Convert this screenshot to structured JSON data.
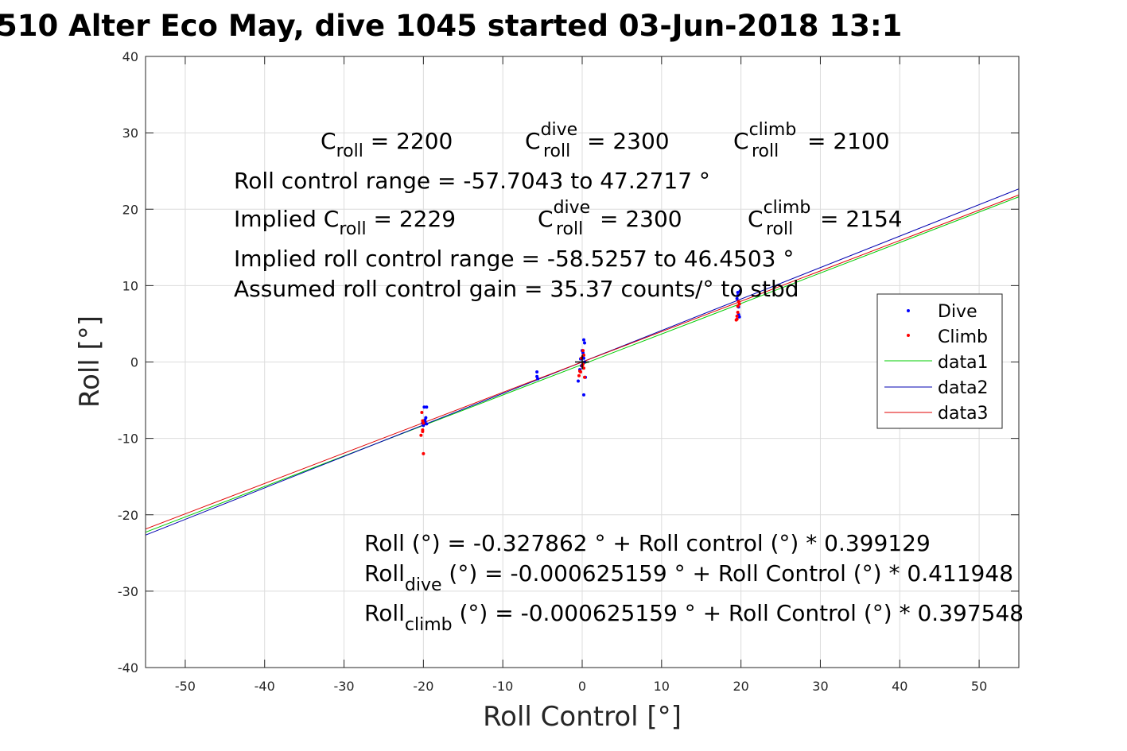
{
  "chart_data": {
    "type": "scatter",
    "title": "510 Alter Eco May, dive 1045 started 03-Jun-2018 13:1",
    "xlabel": "Roll Control [°]",
    "ylabel": "Roll [°]",
    "xlim": [
      -55,
      55
    ],
    "ylim": [
      -40,
      40
    ],
    "xticks": [
      -50,
      -40,
      -30,
      -20,
      -10,
      0,
      10,
      20,
      30,
      40,
      50
    ],
    "yticks": [
      -40,
      -30,
      -20,
      -10,
      0,
      10,
      20,
      30,
      40
    ],
    "xtick_labels": [
      "-50",
      "-40",
      "-30",
      "-20",
      "-10",
      "0",
      "10",
      "20",
      "30",
      "40",
      "50"
    ],
    "ytick_labels": [
      "-40",
      "-30",
      "-20",
      "-10",
      "0",
      "10",
      "20",
      "30",
      "40"
    ],
    "grid": true,
    "legend_position": "right",
    "series": [
      {
        "name": "Dive",
        "kind": "points",
        "color": "#0000ff",
        "x": [
          -20.1,
          -19.8,
          -19.7,
          -19.6,
          -19.9,
          -20.0,
          -19.8,
          -19.6,
          -5.7,
          -5.6,
          -5.7,
          -0.5,
          -0.3,
          -0.2,
          0.0,
          0.1,
          0.2,
          0.3,
          0.4,
          -0.1,
          0.1,
          0.2,
          0.3,
          0.2,
          19.5,
          19.6,
          19.7,
          19.8,
          19.6,
          19.9,
          19.7
        ],
        "y": [
          -8.0,
          -7.9,
          -7.3,
          -5.9,
          -5.9,
          -8.3,
          -7.6,
          -8.1,
          -1.3,
          -2.2,
          -1.9,
          -2.5,
          -1.0,
          0.4,
          1.5,
          0.7,
          2.9,
          2.5,
          -2.0,
          -0.5,
          1.2,
          -4.3,
          0.0,
          0.5,
          8.3,
          9.1,
          6.2,
          5.9,
          8.7,
          9.3,
          7.2
        ]
      },
      {
        "name": "Climb",
        "kind": "points",
        "color": "#ff0000",
        "x": [
          -20.2,
          -20.1,
          -20.0,
          -20.3,
          -20.1,
          -20.0,
          -20.1,
          -0.4,
          -0.2,
          -0.1,
          0.0,
          0.1,
          0.2,
          0.3,
          -0.3,
          0.2,
          0.1,
          19.4,
          19.5,
          19.6,
          19.7,
          19.5,
          19.8,
          19.6
        ],
        "y": [
          -6.6,
          -7.7,
          -8.0,
          -9.6,
          -9.1,
          -12.0,
          -8.9,
          -1.8,
          -1.3,
          0.5,
          -0.5,
          1.5,
          -0.8,
          -2.0,
          -1.2,
          0.9,
          -0.3,
          5.5,
          6.0,
          7.3,
          7.9,
          5.6,
          7.6,
          6.5
        ]
      },
      {
        "name": "data1",
        "kind": "line",
        "color": "#00cc00",
        "intercept": -0.327862,
        "slope": 0.399129
      },
      {
        "name": "data2",
        "kind": "line",
        "color": "#0000b0",
        "intercept": -0.000625159,
        "slope": 0.411948
      },
      {
        "name": "data3",
        "kind": "line",
        "color": "#e00000",
        "intercept": -0.000625159,
        "slope": 0.397548
      }
    ],
    "marker": {
      "x": 0,
      "y": 0,
      "shape": "plus",
      "color": "#000000"
    }
  },
  "annotations": {
    "c_roll": {
      "base": "C",
      "sub": "roll",
      "value": " = 2200"
    },
    "c_roll_dive": {
      "base": "C",
      "sup": "dive",
      "sub": "roll",
      "value": " = 2300"
    },
    "c_roll_climb": {
      "base": "C",
      "sup": "climb",
      "sub": "roll",
      "value": " = 2100"
    },
    "control_range": "Roll control range = -57.7043 to 47.2717 °",
    "implied_c_roll": {
      "base": "Implied C",
      "sub": "roll",
      "value": " = 2229"
    },
    "implied_c_roll_dive": {
      "base": "C",
      "sup": "dive",
      "sub": "roll",
      "value": " = 2300"
    },
    "implied_c_roll_climb": {
      "base": "C",
      "sup": "climb",
      "sub": "roll",
      "value": " = 2154"
    },
    "implied_range": "Implied roll control range = -58.5257 to 46.4503 °",
    "gain": "Assumed roll control gain = 35.37 counts/° to stbd",
    "fit_all": "Roll (°) = -0.327862 ° + Roll control (°) * 0.399129",
    "fit_dive": {
      "base": "Roll",
      "sub": "dive",
      "value": " (°) = -0.000625159 ° + Roll Control (°) * 0.411948"
    },
    "fit_climb": {
      "base": "Roll",
      "sub": "climb",
      "value": " (°) = -0.000625159 ° + Roll Control (°) * 0.397548"
    }
  }
}
